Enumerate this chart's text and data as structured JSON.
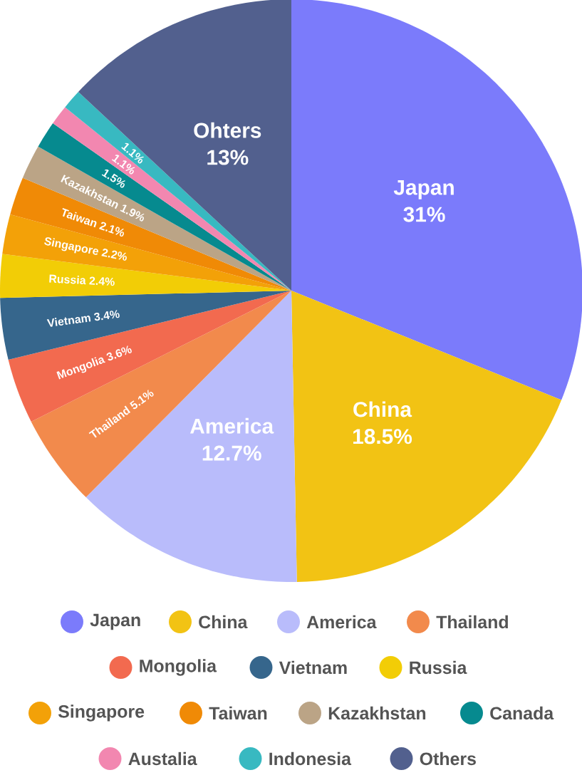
{
  "chart_data": {
    "type": "pie",
    "categories": [
      "Japan",
      "China",
      "America",
      "Thailand",
      "Mongolia",
      "Vietnam",
      "Russia",
      "Singapore",
      "Taiwan",
      "Kazakhstan",
      "Canada",
      "Austalia",
      "Indonesia",
      "Others"
    ],
    "values": [
      31,
      18.5,
      12.7,
      5.1,
      3.6,
      3.4,
      2.4,
      2.2,
      2.1,
      1.9,
      1.5,
      1.1,
      1.1,
      13
    ],
    "colors": [
      "#7b7bfb",
      "#f2c314",
      "#b9bcfb",
      "#f28a4c",
      "#f26a4f",
      "#36668c",
      "#f2cd06",
      "#f3a108",
      "#f08a06",
      "#bba486",
      "#068a8f",
      "#f287b0",
      "#38b9c1",
      "#52608e"
    ],
    "value_labels": [
      "Japan 31%",
      "China 18.5%",
      "America 12.7%",
      "Thailand 5.1%",
      "Mongolia 3.6%",
      "Vietnam 3.4%",
      "Russia 2.4%",
      "Singapore 2.2%",
      "Taiwan 2.1%",
      "Kazakhstan 1.9%",
      "1.5%",
      "1.1%",
      "1.1%",
      "Ohters 13%"
    ],
    "legend": "bottom"
  }
}
